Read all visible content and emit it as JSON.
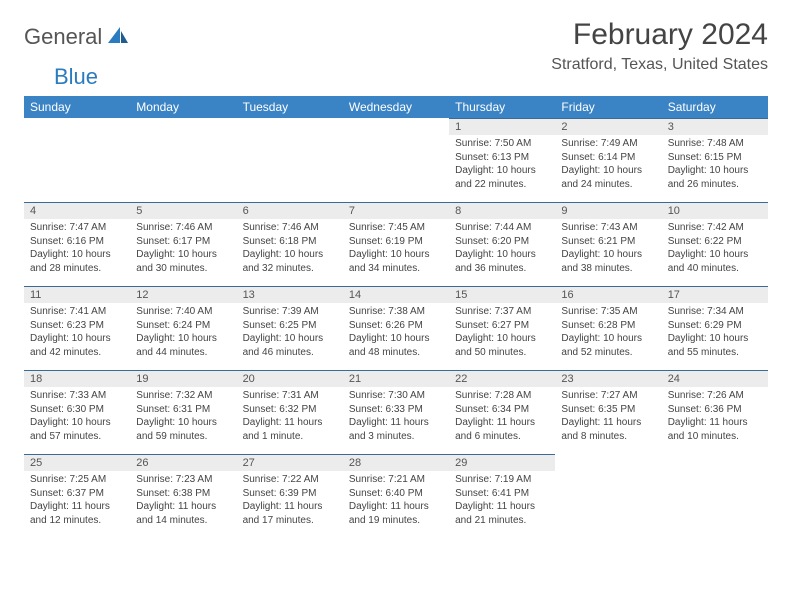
{
  "logo": {
    "general": "General",
    "blue": "Blue"
  },
  "title": "February 2024",
  "location": "Stratford, Texas, United States",
  "colors": {
    "header_bg": "#3a83c4",
    "header_text": "#ffffff",
    "date_bg": "#ececec",
    "row_border": "#3a6b96",
    "text": "#444444",
    "logo_gray": "#555555",
    "logo_blue": "#2b7bbf"
  },
  "day_headers": [
    "Sunday",
    "Monday",
    "Tuesday",
    "Wednesday",
    "Thursday",
    "Friday",
    "Saturday"
  ],
  "weeks": [
    [
      null,
      null,
      null,
      null,
      {
        "n": "1",
        "sr": "7:50 AM",
        "ss": "6:13 PM",
        "dl": "10 hours and 22 minutes."
      },
      {
        "n": "2",
        "sr": "7:49 AM",
        "ss": "6:14 PM",
        "dl": "10 hours and 24 minutes."
      },
      {
        "n": "3",
        "sr": "7:48 AM",
        "ss": "6:15 PM",
        "dl": "10 hours and 26 minutes."
      }
    ],
    [
      {
        "n": "4",
        "sr": "7:47 AM",
        "ss": "6:16 PM",
        "dl": "10 hours and 28 minutes."
      },
      {
        "n": "5",
        "sr": "7:46 AM",
        "ss": "6:17 PM",
        "dl": "10 hours and 30 minutes."
      },
      {
        "n": "6",
        "sr": "7:46 AM",
        "ss": "6:18 PM",
        "dl": "10 hours and 32 minutes."
      },
      {
        "n": "7",
        "sr": "7:45 AM",
        "ss": "6:19 PM",
        "dl": "10 hours and 34 minutes."
      },
      {
        "n": "8",
        "sr": "7:44 AM",
        "ss": "6:20 PM",
        "dl": "10 hours and 36 minutes."
      },
      {
        "n": "9",
        "sr": "7:43 AM",
        "ss": "6:21 PM",
        "dl": "10 hours and 38 minutes."
      },
      {
        "n": "10",
        "sr": "7:42 AM",
        "ss": "6:22 PM",
        "dl": "10 hours and 40 minutes."
      }
    ],
    [
      {
        "n": "11",
        "sr": "7:41 AM",
        "ss": "6:23 PM",
        "dl": "10 hours and 42 minutes."
      },
      {
        "n": "12",
        "sr": "7:40 AM",
        "ss": "6:24 PM",
        "dl": "10 hours and 44 minutes."
      },
      {
        "n": "13",
        "sr": "7:39 AM",
        "ss": "6:25 PM",
        "dl": "10 hours and 46 minutes."
      },
      {
        "n": "14",
        "sr": "7:38 AM",
        "ss": "6:26 PM",
        "dl": "10 hours and 48 minutes."
      },
      {
        "n": "15",
        "sr": "7:37 AM",
        "ss": "6:27 PM",
        "dl": "10 hours and 50 minutes."
      },
      {
        "n": "16",
        "sr": "7:35 AM",
        "ss": "6:28 PM",
        "dl": "10 hours and 52 minutes."
      },
      {
        "n": "17",
        "sr": "7:34 AM",
        "ss": "6:29 PM",
        "dl": "10 hours and 55 minutes."
      }
    ],
    [
      {
        "n": "18",
        "sr": "7:33 AM",
        "ss": "6:30 PM",
        "dl": "10 hours and 57 minutes."
      },
      {
        "n": "19",
        "sr": "7:32 AM",
        "ss": "6:31 PM",
        "dl": "10 hours and 59 minutes."
      },
      {
        "n": "20",
        "sr": "7:31 AM",
        "ss": "6:32 PM",
        "dl": "11 hours and 1 minute."
      },
      {
        "n": "21",
        "sr": "7:30 AM",
        "ss": "6:33 PM",
        "dl": "11 hours and 3 minutes."
      },
      {
        "n": "22",
        "sr": "7:28 AM",
        "ss": "6:34 PM",
        "dl": "11 hours and 6 minutes."
      },
      {
        "n": "23",
        "sr": "7:27 AM",
        "ss": "6:35 PM",
        "dl": "11 hours and 8 minutes."
      },
      {
        "n": "24",
        "sr": "7:26 AM",
        "ss": "6:36 PM",
        "dl": "11 hours and 10 minutes."
      }
    ],
    [
      {
        "n": "25",
        "sr": "7:25 AM",
        "ss": "6:37 PM",
        "dl": "11 hours and 12 minutes."
      },
      {
        "n": "26",
        "sr": "7:23 AM",
        "ss": "6:38 PM",
        "dl": "11 hours and 14 minutes."
      },
      {
        "n": "27",
        "sr": "7:22 AM",
        "ss": "6:39 PM",
        "dl": "11 hours and 17 minutes."
      },
      {
        "n": "28",
        "sr": "7:21 AM",
        "ss": "6:40 PM",
        "dl": "11 hours and 19 minutes."
      },
      {
        "n": "29",
        "sr": "7:19 AM",
        "ss": "6:41 PM",
        "dl": "11 hours and 21 minutes."
      },
      null,
      null
    ]
  ],
  "labels": {
    "sunrise": "Sunrise: ",
    "sunset": "Sunset: ",
    "daylight": "Daylight: "
  }
}
